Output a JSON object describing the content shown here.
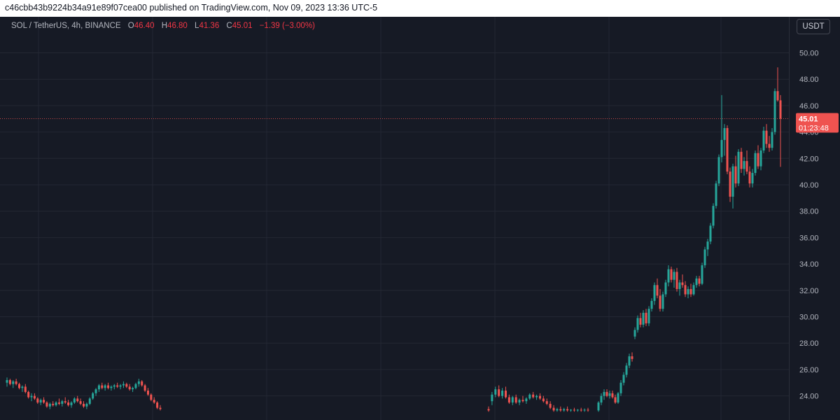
{
  "header": {
    "text": "c46cbb43b9224b34a91e89f07cea00 published on TradingView.com, Nov 09, 2023 13:36 UTC-5"
  },
  "legend": {
    "symbol": "SOL / TetherUS, 4h, BINANCE",
    "open_label": "O",
    "open": "46.40",
    "high_label": "H",
    "high": "46.80",
    "low_label": "L",
    "low": "41.36",
    "close_label": "C",
    "close": "45.01",
    "change": "−1.39 (−3.00%)"
  },
  "unit_button": "USDT",
  "price_tag": {
    "price": "45.01",
    "countdown": "01:23:48"
  },
  "colors": {
    "up": "#26a69a",
    "down": "#ef5350",
    "background": "#161a25",
    "grid": "#232733",
    "axis_text": "#b2b5be"
  },
  "chart_data": {
    "type": "candlestick",
    "symbol": "SOL / TetherUS",
    "interval": "4h",
    "exchange": "BINANCE",
    "y_ticks": [
      "24.00",
      "26.00",
      "28.00",
      "30.00",
      "32.00",
      "34.00",
      "36.00",
      "38.00",
      "40.00",
      "42.00",
      "44.00",
      "46.00",
      "48.00",
      "50.00"
    ],
    "ylim": [
      22.8,
      51.0
    ],
    "last_price": 45.01,
    "grid": true,
    "candles": [
      {
        "o": 25.0,
        "h": 25.4,
        "l": 24.7,
        "c": 25.2
      },
      {
        "o": 25.2,
        "h": 25.3,
        "l": 24.8,
        "c": 24.9
      },
      {
        "o": 24.9,
        "h": 25.2,
        "l": 24.6,
        "c": 25.1
      },
      {
        "o": 25.1,
        "h": 25.3,
        "l": 24.8,
        "c": 24.9
      },
      {
        "o": 24.9,
        "h": 25.0,
        "l": 24.5,
        "c": 24.6
      },
      {
        "o": 24.6,
        "h": 24.8,
        "l": 24.3,
        "c": 24.7
      },
      {
        "o": 24.7,
        "h": 24.9,
        "l": 24.2,
        "c": 24.3
      },
      {
        "o": 24.3,
        "h": 24.4,
        "l": 23.8,
        "c": 23.9
      },
      {
        "o": 23.9,
        "h": 24.2,
        "l": 23.6,
        "c": 24.0
      },
      {
        "o": 24.0,
        "h": 24.2,
        "l": 23.7,
        "c": 23.8
      },
      {
        "o": 23.8,
        "h": 23.9,
        "l": 23.4,
        "c": 23.5
      },
      {
        "o": 23.5,
        "h": 23.8,
        "l": 23.3,
        "c": 23.7
      },
      {
        "o": 23.7,
        "h": 23.9,
        "l": 23.4,
        "c": 23.5
      },
      {
        "o": 23.5,
        "h": 23.6,
        "l": 23.1,
        "c": 23.2
      },
      {
        "o": 23.2,
        "h": 23.5,
        "l": 23.0,
        "c": 23.4
      },
      {
        "o": 23.4,
        "h": 23.6,
        "l": 23.2,
        "c": 23.3
      },
      {
        "o": 23.3,
        "h": 23.6,
        "l": 23.2,
        "c": 23.5
      },
      {
        "o": 23.5,
        "h": 23.8,
        "l": 23.3,
        "c": 23.4
      },
      {
        "o": 23.4,
        "h": 23.7,
        "l": 23.2,
        "c": 23.6
      },
      {
        "o": 23.6,
        "h": 23.9,
        "l": 23.4,
        "c": 23.5
      },
      {
        "o": 23.5,
        "h": 23.7,
        "l": 23.2,
        "c": 23.3
      },
      {
        "o": 23.3,
        "h": 23.6,
        "l": 23.1,
        "c": 23.5
      },
      {
        "o": 23.5,
        "h": 23.9,
        "l": 23.4,
        "c": 23.8
      },
      {
        "o": 23.8,
        "h": 24.0,
        "l": 23.5,
        "c": 23.6
      },
      {
        "o": 23.6,
        "h": 23.8,
        "l": 23.3,
        "c": 23.4
      },
      {
        "o": 23.4,
        "h": 23.6,
        "l": 23.1,
        "c": 23.2
      },
      {
        "o": 23.2,
        "h": 23.5,
        "l": 23.0,
        "c": 23.4
      },
      {
        "o": 23.4,
        "h": 23.9,
        "l": 23.3,
        "c": 23.8
      },
      {
        "o": 23.8,
        "h": 24.3,
        "l": 23.7,
        "c": 24.2
      },
      {
        "o": 24.2,
        "h": 24.6,
        "l": 24.0,
        "c": 24.5
      },
      {
        "o": 24.5,
        "h": 24.9,
        "l": 24.3,
        "c": 24.8
      },
      {
        "o": 24.8,
        "h": 25.0,
        "l": 24.5,
        "c": 24.6
      },
      {
        "o": 24.6,
        "h": 24.9,
        "l": 24.4,
        "c": 24.8
      },
      {
        "o": 24.8,
        "h": 25.0,
        "l": 24.5,
        "c": 24.6
      },
      {
        "o": 24.6,
        "h": 24.8,
        "l": 24.4,
        "c": 24.7
      },
      {
        "o": 24.7,
        "h": 24.9,
        "l": 24.5,
        "c": 24.8
      },
      {
        "o": 24.8,
        "h": 25.0,
        "l": 24.6,
        "c": 24.7
      },
      {
        "o": 24.7,
        "h": 24.9,
        "l": 24.5,
        "c": 24.8
      },
      {
        "o": 24.8,
        "h": 25.1,
        "l": 24.6,
        "c": 24.9
      },
      {
        "o": 24.9,
        "h": 25.0,
        "l": 24.6,
        "c": 24.7
      },
      {
        "o": 24.7,
        "h": 24.9,
        "l": 24.4,
        "c": 24.5
      },
      {
        "o": 24.5,
        "h": 24.7,
        "l": 24.3,
        "c": 24.6
      },
      {
        "o": 24.6,
        "h": 25.0,
        "l": 24.5,
        "c": 24.9
      },
      {
        "o": 24.9,
        "h": 25.3,
        "l": 24.7,
        "c": 25.1
      },
      {
        "o": 25.1,
        "h": 25.2,
        "l": 24.7,
        "c": 24.8
      },
      {
        "o": 24.8,
        "h": 24.9,
        "l": 24.3,
        "c": 24.4
      },
      {
        "o": 24.4,
        "h": 24.6,
        "l": 24.0,
        "c": 24.1
      },
      {
        "o": 24.1,
        "h": 24.2,
        "l": 23.6,
        "c": 23.7
      },
      {
        "o": 23.7,
        "h": 23.9,
        "l": 23.4,
        "c": 23.5
      },
      {
        "o": 23.5,
        "h": 23.6,
        "l": 23.0,
        "c": 23.1
      },
      {
        "o": 23.1,
        "h": 23.3,
        "l": 22.9,
        "c": 23.0
      },
      {
        "o": 23.0,
        "h": 23.2,
        "l": 22.8,
        "c": 22.9
      },
      {
        "o": 23.6,
        "h": 24.3,
        "l": 23.3,
        "c": 24.1
      },
      {
        "o": 24.1,
        "h": 24.7,
        "l": 23.9,
        "c": 24.5
      },
      {
        "o": 24.5,
        "h": 24.8,
        "l": 23.9,
        "c": 24.0
      },
      {
        "o": 24.0,
        "h": 24.6,
        "l": 23.8,
        "c": 24.4
      },
      {
        "o": 24.4,
        "h": 24.7,
        "l": 23.8,
        "c": 23.9
      },
      {
        "o": 23.9,
        "h": 24.1,
        "l": 23.4,
        "c": 23.5
      },
      {
        "o": 23.5,
        "h": 24.0,
        "l": 23.3,
        "c": 23.9
      },
      {
        "o": 23.9,
        "h": 24.1,
        "l": 23.4,
        "c": 23.5
      },
      {
        "o": 23.5,
        "h": 23.8,
        "l": 23.3,
        "c": 23.7
      },
      {
        "o": 23.7,
        "h": 24.0,
        "l": 23.5,
        "c": 23.6
      },
      {
        "o": 23.6,
        "h": 23.9,
        "l": 23.4,
        "c": 23.8
      },
      {
        "o": 23.8,
        "h": 24.2,
        "l": 23.7,
        "c": 24.1
      },
      {
        "o": 24.1,
        "h": 24.3,
        "l": 23.8,
        "c": 23.9
      },
      {
        "o": 23.9,
        "h": 24.1,
        "l": 23.7,
        "c": 24.0
      },
      {
        "o": 24.0,
        "h": 24.2,
        "l": 23.7,
        "c": 23.8
      },
      {
        "o": 23.8,
        "h": 24.0,
        "l": 23.5,
        "c": 23.6
      },
      {
        "o": 23.6,
        "h": 23.8,
        "l": 23.3,
        "c": 23.4
      },
      {
        "o": 23.4,
        "h": 23.6,
        "l": 23.0,
        "c": 23.1
      },
      {
        "o": 23.1,
        "h": 23.3,
        "l": 22.8,
        "c": 22.9
      },
      {
        "o": 22.9,
        "h": 23.1,
        "l": 22.8,
        "c": 23.0
      },
      {
        "o": 23.0,
        "h": 23.2,
        "l": 22.8,
        "c": 22.9
      },
      {
        "o": 22.9,
        "h": 23.1,
        "l": 22.8,
        "c": 23.0
      },
      {
        "o": 23.0,
        "h": 23.2,
        "l": 22.8,
        "c": 22.9
      },
      {
        "o": 22.9,
        "h": 23.0,
        "l": 22.8,
        "c": 22.95
      },
      {
        "o": 22.95,
        "h": 23.1,
        "l": 22.8,
        "c": 22.9
      },
      {
        "o": 22.9,
        "h": 23.0,
        "l": 22.8,
        "c": 22.95
      },
      {
        "o": 22.95,
        "h": 23.1,
        "l": 22.8,
        "c": 22.9
      },
      {
        "o": 22.9,
        "h": 23.05,
        "l": 22.8,
        "c": 22.95
      },
      {
        "o": 22.95,
        "h": 23.1,
        "l": 22.8,
        "c": 22.9
      },
      {
        "o": 22.9,
        "h": 23.6,
        "l": 22.8,
        "c": 23.5
      },
      {
        "o": 23.5,
        "h": 24.2,
        "l": 23.3,
        "c": 24.0
      },
      {
        "o": 24.0,
        "h": 24.5,
        "l": 23.7,
        "c": 24.3
      },
      {
        "o": 24.3,
        "h": 24.5,
        "l": 23.9,
        "c": 24.0
      },
      {
        "o": 24.0,
        "h": 24.4,
        "l": 23.8,
        "c": 24.2
      },
      {
        "o": 24.2,
        "h": 24.4,
        "l": 23.8,
        "c": 23.9
      },
      {
        "o": 23.9,
        "h": 24.1,
        "l": 23.4,
        "c": 23.5
      },
      {
        "o": 23.5,
        "h": 24.3,
        "l": 23.4,
        "c": 24.2
      },
      {
        "o": 24.2,
        "h": 25.2,
        "l": 24.0,
        "c": 25.0
      },
      {
        "o": 25.0,
        "h": 25.8,
        "l": 24.8,
        "c": 25.6
      },
      {
        "o": 25.6,
        "h": 26.5,
        "l": 25.4,
        "c": 26.3
      },
      {
        "o": 26.3,
        "h": 27.2,
        "l": 26.1,
        "c": 27.0
      },
      {
        "o": 27.0,
        "h": 27.3,
        "l": 26.6,
        "c": 26.8
      },
      {
        "o": 28.5,
        "h": 29.2,
        "l": 28.3,
        "c": 29.0
      },
      {
        "o": 29.0,
        "h": 30.1,
        "l": 28.8,
        "c": 29.9
      },
      {
        "o": 29.9,
        "h": 30.3,
        "l": 29.2,
        "c": 29.4
      },
      {
        "o": 29.4,
        "h": 30.5,
        "l": 29.2,
        "c": 30.3
      },
      {
        "o": 30.3,
        "h": 30.6,
        "l": 29.3,
        "c": 29.5
      },
      {
        "o": 29.5,
        "h": 30.8,
        "l": 29.3,
        "c": 30.6
      },
      {
        "o": 30.6,
        "h": 31.4,
        "l": 30.4,
        "c": 31.2
      },
      {
        "o": 31.2,
        "h": 32.6,
        "l": 30.9,
        "c": 32.4
      },
      {
        "o": 32.4,
        "h": 32.9,
        "l": 31.4,
        "c": 31.6
      },
      {
        "o": 31.6,
        "h": 32.1,
        "l": 30.4,
        "c": 30.6
      },
      {
        "o": 30.6,
        "h": 31.9,
        "l": 30.4,
        "c": 31.7
      },
      {
        "o": 31.7,
        "h": 32.8,
        "l": 31.5,
        "c": 32.6
      },
      {
        "o": 32.6,
        "h": 33.9,
        "l": 32.3,
        "c": 33.6
      },
      {
        "o": 33.6,
        "h": 33.8,
        "l": 32.6,
        "c": 32.8
      },
      {
        "o": 32.8,
        "h": 33.6,
        "l": 32.2,
        "c": 33.4
      },
      {
        "o": 33.4,
        "h": 33.7,
        "l": 31.9,
        "c": 32.1
      },
      {
        "o": 32.1,
        "h": 32.8,
        "l": 31.6,
        "c": 32.6
      },
      {
        "o": 32.6,
        "h": 33.2,
        "l": 32.2,
        "c": 32.4
      },
      {
        "o": 32.4,
        "h": 32.7,
        "l": 31.5,
        "c": 31.7
      },
      {
        "o": 31.7,
        "h": 32.3,
        "l": 31.4,
        "c": 32.1
      },
      {
        "o": 32.1,
        "h": 32.5,
        "l": 31.5,
        "c": 31.7
      },
      {
        "o": 31.7,
        "h": 32.6,
        "l": 31.6,
        "c": 32.4
      },
      {
        "o": 32.4,
        "h": 33.1,
        "l": 32.2,
        "c": 32.9
      },
      {
        "o": 32.9,
        "h": 33.1,
        "l": 32.3,
        "c": 32.5
      },
      {
        "o": 32.5,
        "h": 34.1,
        "l": 32.4,
        "c": 33.9
      },
      {
        "o": 33.9,
        "h": 35.3,
        "l": 33.7,
        "c": 35.1
      },
      {
        "o": 35.1,
        "h": 35.9,
        "l": 34.6,
        "c": 35.7
      },
      {
        "o": 35.7,
        "h": 37.1,
        "l": 35.5,
        "c": 36.9
      },
      {
        "o": 36.9,
        "h": 38.6,
        "l": 36.7,
        "c": 38.4
      },
      {
        "o": 38.4,
        "h": 40.3,
        "l": 38.2,
        "c": 40.1
      },
      {
        "o": 40.1,
        "h": 42.3,
        "l": 39.9,
        "c": 42.1
      },
      {
        "o": 42.1,
        "h": 46.8,
        "l": 41.7,
        "c": 43.4
      },
      {
        "o": 43.4,
        "h": 44.6,
        "l": 42.2,
        "c": 44.3
      },
      {
        "o": 44.3,
        "h": 44.5,
        "l": 40.8,
        "c": 41.0
      },
      {
        "o": 41.0,
        "h": 41.3,
        "l": 38.7,
        "c": 39.1
      },
      {
        "o": 39.1,
        "h": 41.6,
        "l": 38.2,
        "c": 41.4
      },
      {
        "o": 41.4,
        "h": 42.2,
        "l": 39.8,
        "c": 40.1
      },
      {
        "o": 40.1,
        "h": 42.7,
        "l": 39.9,
        "c": 42.5
      },
      {
        "o": 42.5,
        "h": 42.8,
        "l": 40.9,
        "c": 41.2
      },
      {
        "o": 41.2,
        "h": 42.1,
        "l": 40.7,
        "c": 41.8
      },
      {
        "o": 41.8,
        "h": 42.6,
        "l": 40.8,
        "c": 41.0
      },
      {
        "o": 41.0,
        "h": 41.4,
        "l": 39.8,
        "c": 40.1
      },
      {
        "o": 40.1,
        "h": 41.2,
        "l": 39.8,
        "c": 40.9
      },
      {
        "o": 40.9,
        "h": 42.6,
        "l": 40.7,
        "c": 42.4
      },
      {
        "o": 42.4,
        "h": 43.0,
        "l": 41.2,
        "c": 41.4
      },
      {
        "o": 41.4,
        "h": 42.8,
        "l": 41.1,
        "c": 42.6
      },
      {
        "o": 42.6,
        "h": 44.4,
        "l": 42.4,
        "c": 44.1
      },
      {
        "o": 44.1,
        "h": 44.6,
        "l": 42.8,
        "c": 43.1
      },
      {
        "o": 43.1,
        "h": 43.7,
        "l": 42.5,
        "c": 42.8
      },
      {
        "o": 42.8,
        "h": 44.3,
        "l": 42.6,
        "c": 44.0
      },
      {
        "o": 44.0,
        "h": 47.3,
        "l": 43.8,
        "c": 47.1
      },
      {
        "o": 47.1,
        "h": 48.9,
        "l": 46.3,
        "c": 46.4
      },
      {
        "o": 46.4,
        "h": 46.8,
        "l": 41.36,
        "c": 45.01
      }
    ]
  }
}
